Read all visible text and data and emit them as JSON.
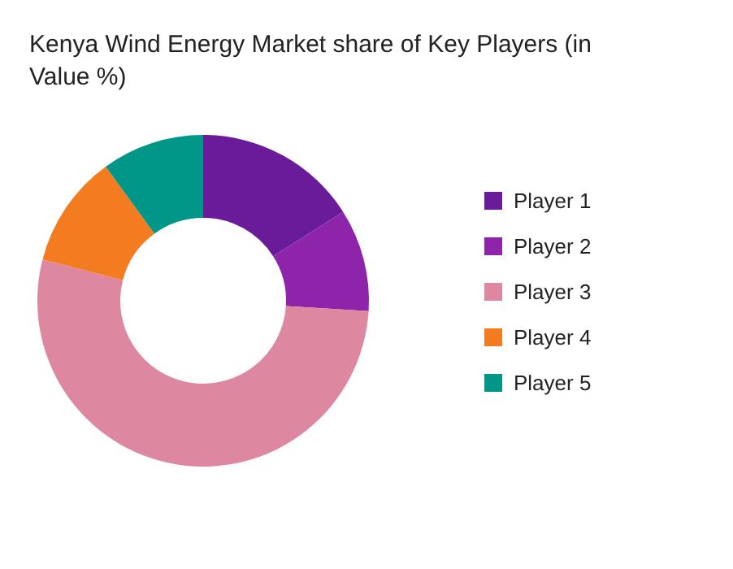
{
  "chart_data": {
    "type": "donut",
    "title": "Kenya Wind Energy Market share of Key Players (in Value %)",
    "categories": [
      "Player 1",
      "Player 2",
      "Player 3",
      "Player 4",
      "Player 5"
    ],
    "values": [
      16,
      10,
      53,
      11,
      10
    ],
    "colors": [
      "#6a1b9a",
      "#8e24aa",
      "#de87a0",
      "#f47c20",
      "#009688"
    ],
    "legend": "right"
  }
}
